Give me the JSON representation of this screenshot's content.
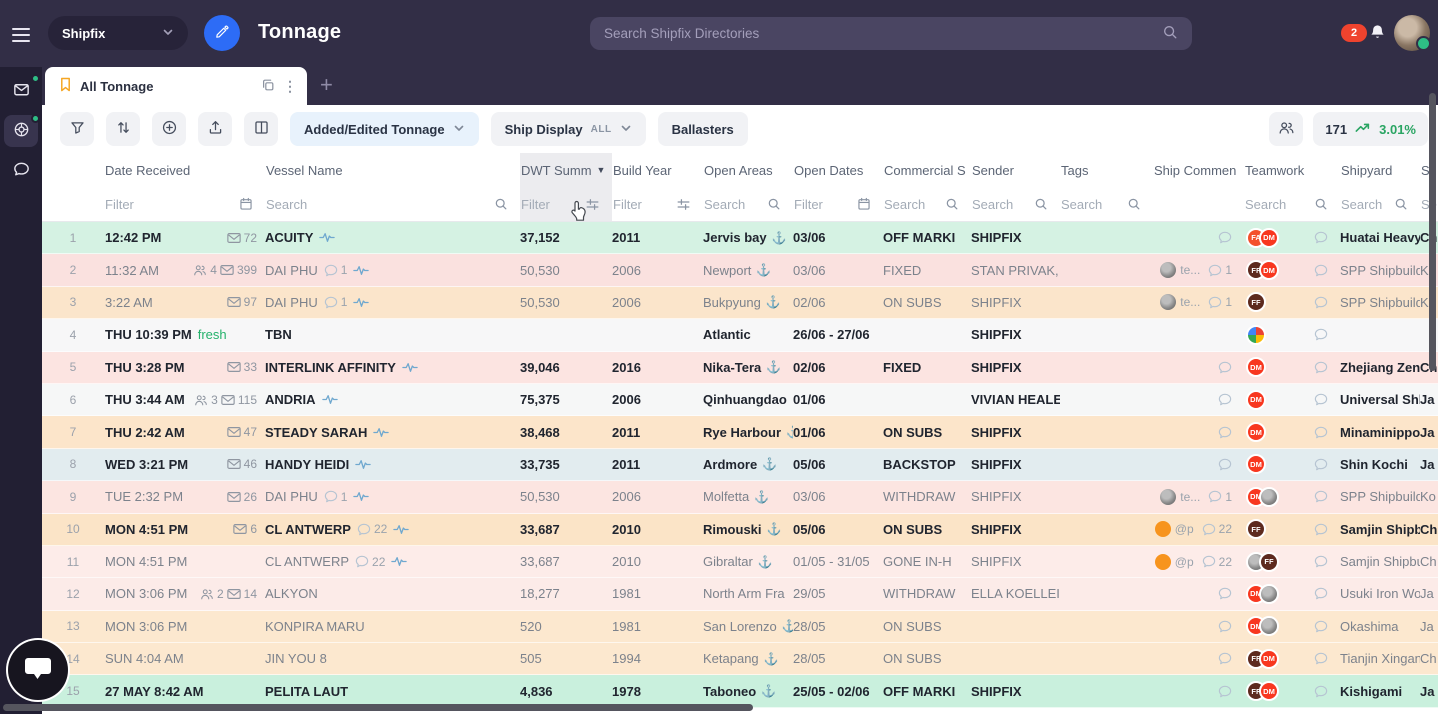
{
  "topbar": {
    "workspace": "Shipfix",
    "page_title": "Tonnage",
    "search_placeholder": "Search Shipfix Directories",
    "notification_count": "2"
  },
  "sidebar": {
    "items": [
      {
        "name": "inbox",
        "has_status_dot": true,
        "active": false
      },
      {
        "name": "tonnage",
        "has_status_dot": true,
        "active": true
      },
      {
        "name": "chat",
        "has_status_dot": false,
        "active": false
      }
    ]
  },
  "tab_bar": {
    "active_tab": "All Tonnage"
  },
  "toolbar": {
    "view_dropdown": "Added/Edited Tonnage",
    "ship_display_label": "Ship Display",
    "ship_display_value": "ALL",
    "ballasters": "Ballasters",
    "row_count": "171",
    "trend_percent": "3.01%"
  },
  "colors": {
    "accent_blue": "#2d6cf6",
    "green_status": "#2ebd85",
    "trend_green": "#2aa563",
    "notification_red": "#ef432e",
    "bookmark_orange": "#f5a623",
    "avatar_FA": "#f4512c",
    "avatar_DM": "#f8371f",
    "avatar_FF": "#5d2a1e",
    "orange_chip": "#f7941d"
  },
  "table": {
    "columns": [
      {
        "label": "",
        "filter": "",
        "filter_icon": ""
      },
      {
        "label": "Date Received",
        "filter": "Filter",
        "filter_icon": "calendar"
      },
      {
        "label": "Vessel Name",
        "filter": "Search",
        "filter_icon": "search"
      },
      {
        "label": "DWT Summ",
        "filter": "Filter",
        "filter_icon": "sliders",
        "sorted": true,
        "highlighted": true
      },
      {
        "label": "Build Year",
        "filter": "Filter",
        "filter_icon": "sliders"
      },
      {
        "label": "Open Areas",
        "filter": "Search",
        "filter_icon": "search"
      },
      {
        "label": "Open Dates",
        "filter": "Filter",
        "filter_icon": "calendar"
      },
      {
        "label": "Commercial S",
        "filter": "Search",
        "filter_icon": "search"
      },
      {
        "label": "Sender",
        "filter": "Search",
        "filter_icon": "search"
      },
      {
        "label": "Tags",
        "filter": "Search",
        "filter_icon": "search"
      },
      {
        "label": "Ship Commen",
        "filter": "",
        "filter_icon": ""
      },
      {
        "label": "Teamwork",
        "filter": "Search",
        "filter_icon": "search"
      },
      {
        "label": "Shipyard",
        "filter": "Search",
        "filter_icon": "search"
      },
      {
        "label": "Sh",
        "filter": "Se",
        "filter_icon": ""
      }
    ],
    "rows": [
      {
        "n": "1",
        "bold": true,
        "bg": "#d5f2e3",
        "date": "12:42 PM",
        "fresh": false,
        "people": "",
        "mail": "72",
        "vessel": "ACUITY",
        "vcount": "",
        "pulse": true,
        "dwt": "37,152",
        "build": "2011",
        "area": "Jervis bay",
        "anchor": true,
        "dates": "03/06",
        "status": "OFF MARKI",
        "sender": "SHIPFIX",
        "chip": null,
        "ccount": "",
        "cbubble": true,
        "team": [
          "FA",
          "DM"
        ],
        "shipyard": "Huatai Heavy",
        "country": "Ch"
      },
      {
        "n": "2",
        "bold": false,
        "bg": "#fae1df",
        "date": "11:32 AM",
        "fresh": false,
        "people": "4",
        "mail": "399",
        "vessel": "DAI PHU",
        "vcount": "1",
        "pulse": true,
        "dwt": "50,530",
        "build": "2006",
        "area": "Newport",
        "anchor": true,
        "dates": "03/06",
        "status": "FIXED",
        "sender": "STAN PRIVAK,",
        "chip": {
          "kind": "photo",
          "text": "te..."
        },
        "ccount": "1",
        "cbubble": true,
        "team": [
          "FF",
          "DM"
        ],
        "shipyard": "SPP Shipbuild",
        "country": "Ko"
      },
      {
        "n": "3",
        "bold": false,
        "bg": "#fbe5cb",
        "date": "3:22 AM",
        "fresh": false,
        "people": "",
        "mail": "97",
        "vessel": "DAI PHU",
        "vcount": "1",
        "pulse": true,
        "dwt": "50,530",
        "build": "2006",
        "area": "Bukpyung",
        "anchor": true,
        "dates": "02/06",
        "status": "ON SUBS",
        "sender": "SHIPFIX",
        "chip": {
          "kind": "photo",
          "text": "te..."
        },
        "ccount": "1",
        "cbubble": true,
        "team": [
          "FF"
        ],
        "shipyard": "SPP Shipbuild",
        "country": "Ko"
      },
      {
        "n": "4",
        "bold": true,
        "bg": "#f7f7f8",
        "date": "THU 10:39 PM",
        "fresh": true,
        "people": "",
        "mail": "",
        "vessel": "TBN",
        "vcount": "",
        "pulse": false,
        "dwt": "",
        "build": "",
        "area": "Atlantic",
        "anchor": false,
        "dates": "26/06 - 27/06",
        "status": "",
        "sender": "SHIPFIX",
        "chip": null,
        "ccount": "",
        "cbubble": false,
        "team": [
          "multi"
        ],
        "shipyard": "",
        "country": ""
      },
      {
        "n": "5",
        "bold": true,
        "bg": "#fce4e1",
        "date": "THU 3:28 PM",
        "fresh": false,
        "people": "",
        "mail": "33",
        "vessel": "INTERLINK AFFINITY",
        "vcount": "",
        "pulse": true,
        "dwt": "39,046",
        "build": "2016",
        "area": "Nika-Tera",
        "anchor": true,
        "dates": "02/06",
        "status": "FIXED",
        "sender": "SHIPFIX",
        "chip": null,
        "ccount": "",
        "cbubble": true,
        "team": [
          "DM"
        ],
        "shipyard": "Zhejiang Zeng",
        "country": "Ch"
      },
      {
        "n": "6",
        "bold": true,
        "bg": "#f6f7f7",
        "date": "THU 3:44 AM",
        "fresh": false,
        "people": "3",
        "mail": "115",
        "vessel": "ANDRIA",
        "vcount": "",
        "pulse": true,
        "dwt": "75,375",
        "build": "2006",
        "area": "Qinhuangdao",
        "anchor": false,
        "dates": "01/06",
        "status": "",
        "sender": "VIVIAN HEALE",
        "chip": null,
        "ccount": "",
        "cbubble": true,
        "team": [
          "DM"
        ],
        "shipyard": "Universal Shb",
        "country": "Ja"
      },
      {
        "n": "7",
        "bold": true,
        "bg": "#fce5ca",
        "date": "THU 2:42 AM",
        "fresh": false,
        "people": "",
        "mail": "47",
        "vessel": "STEADY SARAH",
        "vcount": "",
        "pulse": true,
        "dwt": "38,468",
        "build": "2011",
        "area": "Rye Harbour",
        "anchor": true,
        "dates": "01/06",
        "status": "ON SUBS",
        "sender": "SHIPFIX",
        "chip": null,
        "ccount": "",
        "cbubble": true,
        "team": [
          "DM"
        ],
        "shipyard": "Minaminippor",
        "country": "Ja"
      },
      {
        "n": "8",
        "bold": true,
        "bg": "#e2ecef",
        "date": "WED 3:21 PM",
        "fresh": false,
        "people": "",
        "mail": "46",
        "vessel": "HANDY HEIDI",
        "vcount": "",
        "pulse": true,
        "dwt": "33,735",
        "build": "2011",
        "area": "Ardmore",
        "anchor": true,
        "dates": "05/06",
        "status": "BACKSTOP",
        "sender": "SHIPFIX",
        "chip": null,
        "ccount": "",
        "cbubble": true,
        "team": [
          "DM"
        ],
        "shipyard": "Shin Kochi",
        "country": "Ja"
      },
      {
        "n": "9",
        "bold": false,
        "bg": "#fce5e1",
        "date": "TUE 2:32 PM",
        "fresh": false,
        "people": "",
        "mail": "26",
        "vessel": "DAI PHU",
        "vcount": "1",
        "pulse": true,
        "dwt": "50,530",
        "build": "2006",
        "area": "Molfetta",
        "anchor": true,
        "dates": "03/06",
        "status": "WITHDRAW",
        "sender": "SHIPFIX",
        "chip": {
          "kind": "photo",
          "text": "te..."
        },
        "ccount": "1",
        "cbubble": true,
        "team": [
          "DM",
          "photo"
        ],
        "shipyard": "SPP Shipbuild",
        "country": "Ko"
      },
      {
        "n": "10",
        "bold": true,
        "bg": "#fbe4c7",
        "date": "MON 4:51 PM",
        "fresh": false,
        "people": "",
        "mail": "6",
        "vessel": "CL ANTWERP",
        "vcount": "22",
        "pulse": true,
        "dwt": "33,687",
        "build": "2010",
        "area": "Rimouski",
        "anchor": true,
        "dates": "05/06",
        "status": "ON SUBS",
        "sender": "SHIPFIX",
        "chip": {
          "kind": "orange",
          "text": "@p"
        },
        "ccount": "22",
        "cbubble": true,
        "team": [
          "FF"
        ],
        "shipyard": "Samjin Shipbu",
        "country": "Ch"
      },
      {
        "n": "11",
        "bold": false,
        "bg": "#fdece9",
        "date": "MON 4:51 PM",
        "fresh": false,
        "people": "",
        "mail": "",
        "vessel": "CL ANTWERP",
        "vcount": "22",
        "pulse": true,
        "dwt": "33,687",
        "build": "2010",
        "area": "Gibraltar",
        "anchor": true,
        "dates": "01/05 - 31/05",
        "status": "GONE IN-H",
        "sender": "SHIPFIX",
        "chip": {
          "kind": "orange",
          "text": "@p"
        },
        "ccount": "22",
        "cbubble": true,
        "team": [
          "photo",
          "FF"
        ],
        "shipyard": "Samjin Shipbu",
        "country": "Ch"
      },
      {
        "n": "12",
        "bold": false,
        "bg": "#fcebe8",
        "date": "MON 3:06 PM",
        "fresh": false,
        "people": "2",
        "mail": "14",
        "vessel": "ALKYON",
        "vcount": "",
        "pulse": false,
        "dwt": "18,277",
        "build": "1981",
        "area": "North Arm Fra",
        "anchor": false,
        "dates": "29/05",
        "status": "WITHDRAW",
        "sender": "ELLA KOELLEI",
        "chip": null,
        "ccount": "",
        "cbubble": true,
        "team": [
          "DM",
          "photo"
        ],
        "shipyard": "Usuki Iron Wor",
        "country": "Ja"
      },
      {
        "n": "13",
        "bold": false,
        "bg": "#fce8cf",
        "date": "MON 3:06 PM",
        "fresh": false,
        "people": "",
        "mail": "",
        "vessel": "KONPIRA MARU",
        "vcount": "",
        "pulse": false,
        "dwt": "520",
        "build": "1981",
        "area": "San Lorenzo",
        "anchor": true,
        "dates": "28/05",
        "status": "ON SUBS",
        "sender": "",
        "chip": null,
        "ccount": "",
        "cbubble": true,
        "team": [
          "DM",
          "photo"
        ],
        "shipyard": "Okashima",
        "country": "Ja"
      },
      {
        "n": "14",
        "bold": false,
        "bg": "#fce8cf",
        "date": "SUN 4:04 AM",
        "fresh": false,
        "people": "",
        "mail": "",
        "vessel": "JIN YOU 8",
        "vcount": "",
        "pulse": false,
        "dwt": "505",
        "build": "1994",
        "area": "Ketapang",
        "anchor": true,
        "dates": "28/05",
        "status": "ON SUBS",
        "sender": "",
        "chip": null,
        "ccount": "",
        "cbubble": true,
        "team": [
          "FF",
          "DM"
        ],
        "shipyard": "Tianjin Xingan",
        "country": "Ch"
      },
      {
        "n": "15",
        "bold": true,
        "bg": "#c9f0dd",
        "date": "27 MAY 8:42 AM",
        "fresh": false,
        "people": "",
        "mail": "",
        "vessel": "PELITA LAUT",
        "vcount": "",
        "pulse": false,
        "dwt": "4,836",
        "build": "1978",
        "area": "Taboneo",
        "anchor": true,
        "dates": "25/05 - 02/06",
        "status": "OFF MARKI",
        "sender": "SHIPFIX",
        "chip": null,
        "ccount": "",
        "cbubble": true,
        "team": [
          "FF",
          "DM"
        ],
        "shipyard": "Kishigami",
        "country": "Ja"
      }
    ]
  }
}
